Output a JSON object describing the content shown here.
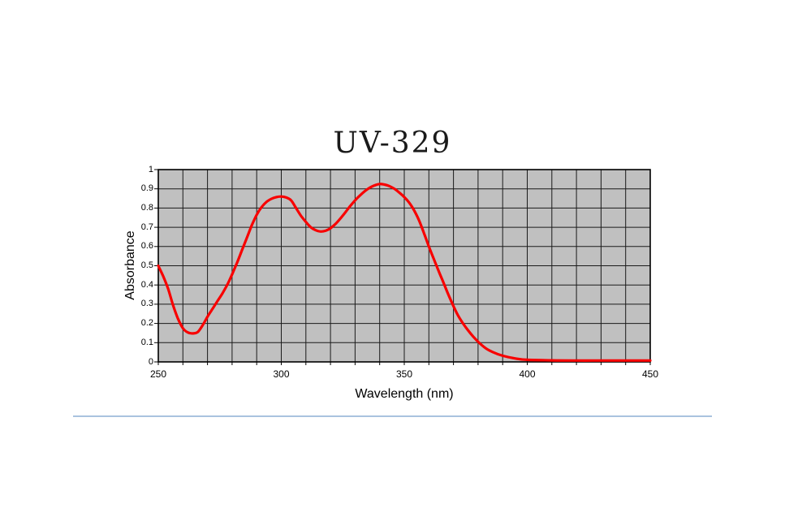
{
  "page": {
    "background": "#FFFFFF"
  },
  "divider": {
    "color": "#A9C3DF"
  },
  "chart_data": {
    "type": "line",
    "title": "UV-329",
    "xlabel": "Wavelength (nm)",
    "ylabel": "Absorbance",
    "xlim": [
      250,
      450
    ],
    "ylim": [
      0,
      1
    ],
    "x_ticks": [
      {
        "value": 250,
        "label": "250"
      },
      {
        "value": 300,
        "label": "300"
      },
      {
        "value": 350,
        "label": "350"
      },
      {
        "value": 400,
        "label": "400"
      },
      {
        "value": 450,
        "label": "450"
      }
    ],
    "y_ticks": [
      {
        "value": 0,
        "label": "0"
      },
      {
        "value": 0.1,
        "label": "0.1"
      },
      {
        "value": 0.2,
        "label": "0.2"
      },
      {
        "value": 0.3,
        "label": "0.3"
      },
      {
        "value": 0.4,
        "label": "0.4"
      },
      {
        "value": 0.5,
        "label": "0.5"
      },
      {
        "value": 0.6,
        "label": "0.6"
      },
      {
        "value": 0.7,
        "label": "0.7"
      },
      {
        "value": 0.8,
        "label": "0.8"
      },
      {
        "value": 0.9,
        "label": "0.9"
      },
      {
        "value": 1,
        "label": "1"
      }
    ],
    "x_grid_interval": 10,
    "y_grid_interval": 0.1,
    "grid": true,
    "legend_position": "none",
    "plot_bg": "#C0C0C0",
    "grid_color": "#1A1A1A",
    "border_color": "#000000",
    "series": [
      {
        "name": "UV-329 absorbance spectrum",
        "color": "#F80000",
        "x": [
          250,
          252,
          254,
          256,
          258,
          260,
          262,
          264,
          266,
          268,
          270,
          272,
          274,
          276,
          278,
          280,
          282,
          284,
          286,
          288,
          290,
          292,
          294,
          296,
          298,
          300,
          302,
          304,
          306,
          308,
          310,
          312,
          314,
          316,
          318,
          320,
          322,
          324,
          326,
          328,
          330,
          332,
          334,
          336,
          338,
          340,
          342,
          344,
          346,
          348,
          350,
          352,
          354,
          356,
          358,
          360,
          362,
          364,
          366,
          368,
          370,
          372,
          374,
          376,
          378,
          380,
          383,
          386,
          390,
          395,
          400,
          410,
          420,
          430,
          440,
          450
        ],
        "y": [
          0.5,
          0.445,
          0.38,
          0.295,
          0.225,
          0.175,
          0.153,
          0.148,
          0.155,
          0.19,
          0.235,
          0.275,
          0.315,
          0.355,
          0.4,
          0.455,
          0.515,
          0.58,
          0.645,
          0.71,
          0.765,
          0.805,
          0.832,
          0.848,
          0.857,
          0.86,
          0.855,
          0.84,
          0.8,
          0.76,
          0.728,
          0.7,
          0.685,
          0.678,
          0.682,
          0.695,
          0.717,
          0.745,
          0.777,
          0.81,
          0.84,
          0.866,
          0.888,
          0.906,
          0.918,
          0.925,
          0.922,
          0.914,
          0.9,
          0.88,
          0.857,
          0.828,
          0.788,
          0.736,
          0.67,
          0.6,
          0.535,
          0.472,
          0.41,
          0.348,
          0.29,
          0.238,
          0.198,
          0.163,
          0.132,
          0.105,
          0.072,
          0.051,
          0.032,
          0.018,
          0.011,
          0.008,
          0.007,
          0.007,
          0.007,
          0.007
        ]
      }
    ]
  }
}
